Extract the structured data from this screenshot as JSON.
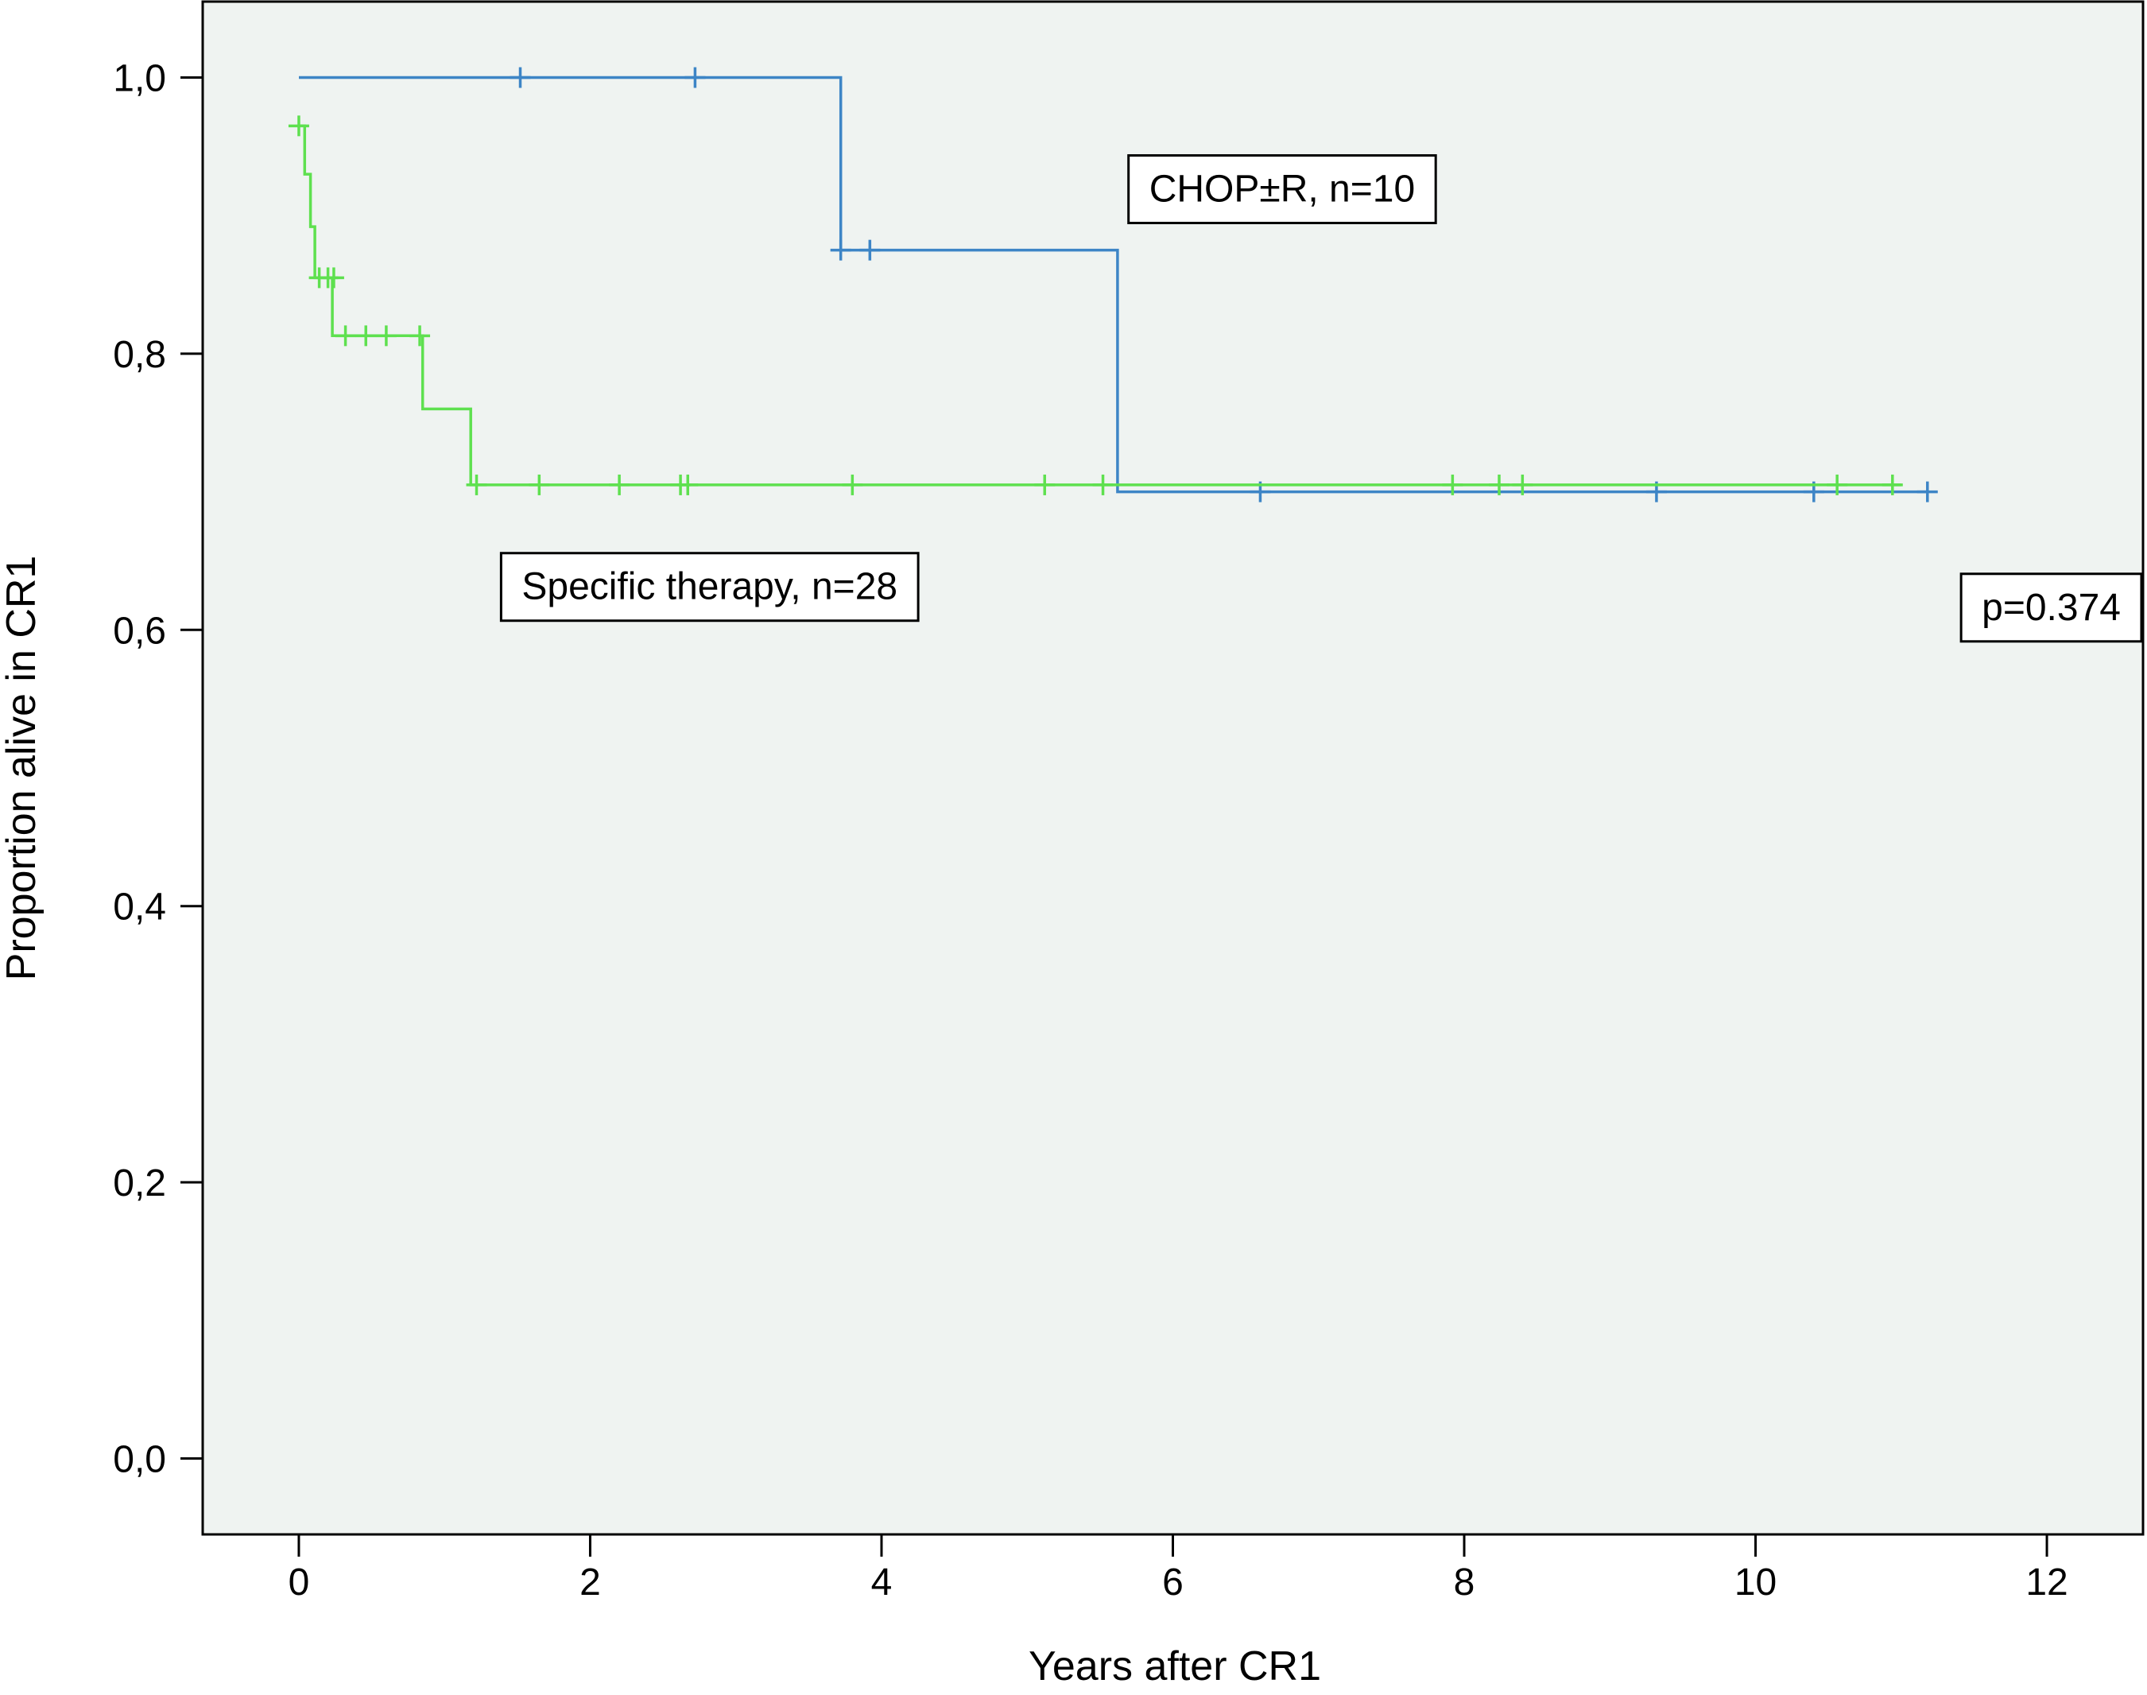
{
  "chart_data": {
    "type": "line",
    "title": "",
    "xlabel": "Years after CR1",
    "ylabel": "Proportion alive in CR1",
    "xlim": [
      -0.66,
      12.66
    ],
    "ylim": [
      -0.055,
      1.055
    ],
    "x_ticks": [
      0,
      2,
      4,
      6,
      8,
      10,
      12
    ],
    "x_tick_labels": [
      "0",
      "2",
      "4",
      "6",
      "8",
      "10",
      "12"
    ],
    "y_ticks": [
      0.0,
      0.2,
      0.4,
      0.6,
      0.8,
      1.0
    ],
    "y_tick_labels": [
      "0,0",
      "0,2",
      "0,4",
      "0,6",
      "0,8",
      "1,0"
    ],
    "grid": false,
    "background_color": "#eff3f1",
    "series": [
      {
        "name": "CHOP±R, n=10",
        "color": "#3d85c6",
        "steps": [
          {
            "x": 0.0,
            "y": 1.0
          },
          {
            "x": 3.72,
            "y": 0.875
          },
          {
            "x": 5.62,
            "y": 0.7
          },
          {
            "x": 11.18,
            "y": 0.7
          }
        ],
        "censored": [
          {
            "x": 1.52,
            "y": 1.0
          },
          {
            "x": 2.72,
            "y": 1.0
          },
          {
            "x": 3.72,
            "y": 0.875
          },
          {
            "x": 3.92,
            "y": 0.875
          },
          {
            "x": 6.6,
            "y": 0.7
          },
          {
            "x": 9.32,
            "y": 0.7
          },
          {
            "x": 10.4,
            "y": 0.7
          },
          {
            "x": 11.18,
            "y": 0.7
          }
        ]
      },
      {
        "name": "Specific therapy, n=28",
        "color": "#5ee04f",
        "steps": [
          {
            "x": 0.0,
            "y": 0.965
          },
          {
            "x": 0.04,
            "y": 0.93
          },
          {
            "x": 0.08,
            "y": 0.892
          },
          {
            "x": 0.11,
            "y": 0.855
          },
          {
            "x": 0.23,
            "y": 0.813
          },
          {
            "x": 0.85,
            "y": 0.76
          },
          {
            "x": 1.18,
            "y": 0.705
          },
          {
            "x": 11.0,
            "y": 0.705
          }
        ],
        "censored": [
          {
            "x": 0.0,
            "y": 0.965
          },
          {
            "x": 0.14,
            "y": 0.855
          },
          {
            "x": 0.2,
            "y": 0.855
          },
          {
            "x": 0.24,
            "y": 0.855
          },
          {
            "x": 0.32,
            "y": 0.813
          },
          {
            "x": 0.46,
            "y": 0.813
          },
          {
            "x": 0.6,
            "y": 0.813
          },
          {
            "x": 0.83,
            "y": 0.813
          },
          {
            "x": 1.22,
            "y": 0.705
          },
          {
            "x": 1.65,
            "y": 0.705
          },
          {
            "x": 2.2,
            "y": 0.705
          },
          {
            "x": 2.62,
            "y": 0.705
          },
          {
            "x": 2.67,
            "y": 0.705
          },
          {
            "x": 3.8,
            "y": 0.705
          },
          {
            "x": 5.12,
            "y": 0.705
          },
          {
            "x": 5.52,
            "y": 0.705
          },
          {
            "x": 7.92,
            "y": 0.705
          },
          {
            "x": 8.24,
            "y": 0.705
          },
          {
            "x": 8.4,
            "y": 0.705
          },
          {
            "x": 10.56,
            "y": 0.705
          },
          {
            "x": 10.94,
            "y": 0.705
          }
        ]
      }
    ],
    "annotations": [
      {
        "text": "CHOP±R, n=10",
        "x": 6.75,
        "y": 0.92
      },
      {
        "text": "Specific therapy, n=28",
        "x": 2.82,
        "y": 0.632
      },
      {
        "text": "p=0.374",
        "x": 12.03,
        "y": 0.617
      }
    ]
  }
}
